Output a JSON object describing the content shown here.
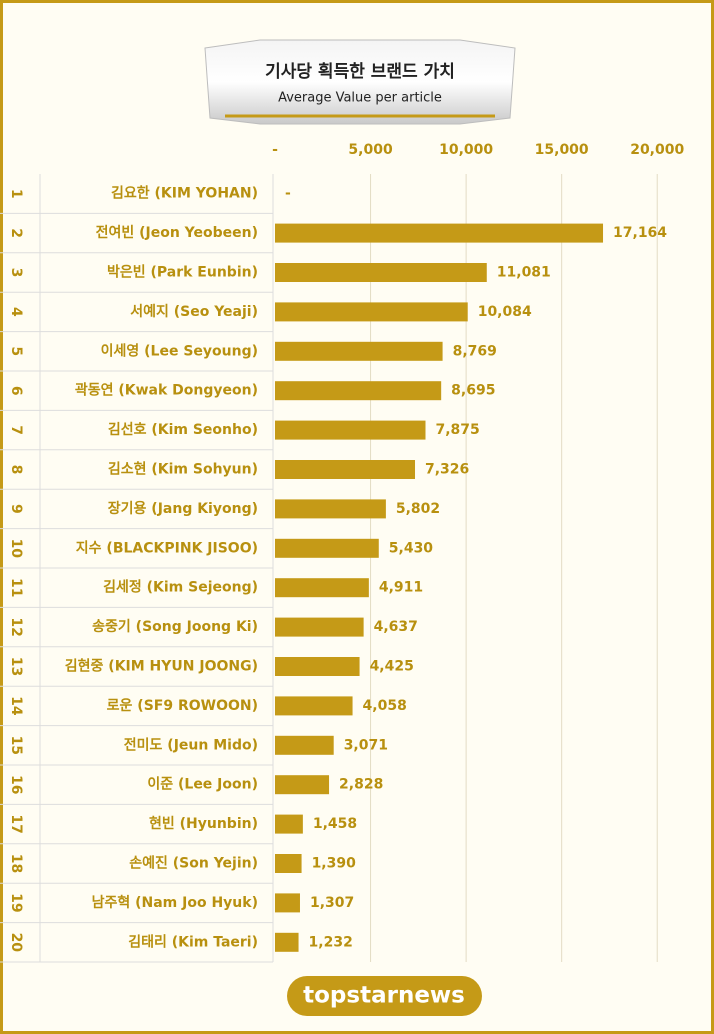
{
  "chart_data": {
    "type": "bar",
    "orientation": "horizontal",
    "title": "기사당 획득한 브랜드 가치",
    "subtitle": "Average Value per article",
    "ranks": [
      1,
      2,
      3,
      4,
      5,
      6,
      7,
      8,
      9,
      10,
      11,
      12,
      13,
      14,
      15,
      16,
      17,
      18,
      19,
      20
    ],
    "categories": [
      "김요한 (KIM YOHAN)",
      "전여빈 (Jeon Yeobeen)",
      "박은빈 (Park Eunbin)",
      "서예지 (Seo Yeaji)",
      "이세영 (Lee Seyoung)",
      "곽동연 (Kwak Dongyeon)",
      "김선호 (Kim Seonho)",
      "김소현 (Kim Sohyun)",
      "장기용 (Jang Kiyong)",
      "지수 (BLACKPINK JISOO)",
      "김세정 (Kim Sejeong)",
      "송중기 (Song Joong Ki)",
      "김현중 (KIM HYUN JOONG)",
      "로운 (SF9 ROWOON)",
      "전미도 (Jeun Mido)",
      "이준 (Lee Joon)",
      "현빈 (Hyunbin)",
      "손예진 (Son Yejin)",
      "남주혁 (Nam Joo Hyuk)",
      "김태리 (Kim Taeri)"
    ],
    "values": [
      null,
      17164,
      11081,
      10084,
      8769,
      8695,
      7875,
      7326,
      5802,
      5430,
      4911,
      4637,
      4425,
      4058,
      3071,
      2828,
      1458,
      1390,
      1307,
      1232
    ],
    "value_labels": [
      "-",
      "17,164",
      "11,081",
      "10,084",
      "8,769",
      "8,695",
      "7,875",
      "7,326",
      "5,802",
      "5,430",
      "4,911",
      "4,637",
      "4,425",
      "4,058",
      "3,071",
      "2,828",
      "1,458",
      "1,390",
      "1,307",
      "1,232"
    ],
    "color": "#c59a17",
    "xlim": [
      0,
      22500
    ],
    "xticks": [
      {
        "value": 0,
        "label": "-"
      },
      {
        "value": 5000,
        "label": "5,000"
      },
      {
        "value": 10000,
        "label": "10,000"
      },
      {
        "value": 15000,
        "label": "15,000"
      },
      {
        "value": 20000,
        "label": "20,000"
      }
    ],
    "grid": true,
    "logo": "topstarnews"
  }
}
